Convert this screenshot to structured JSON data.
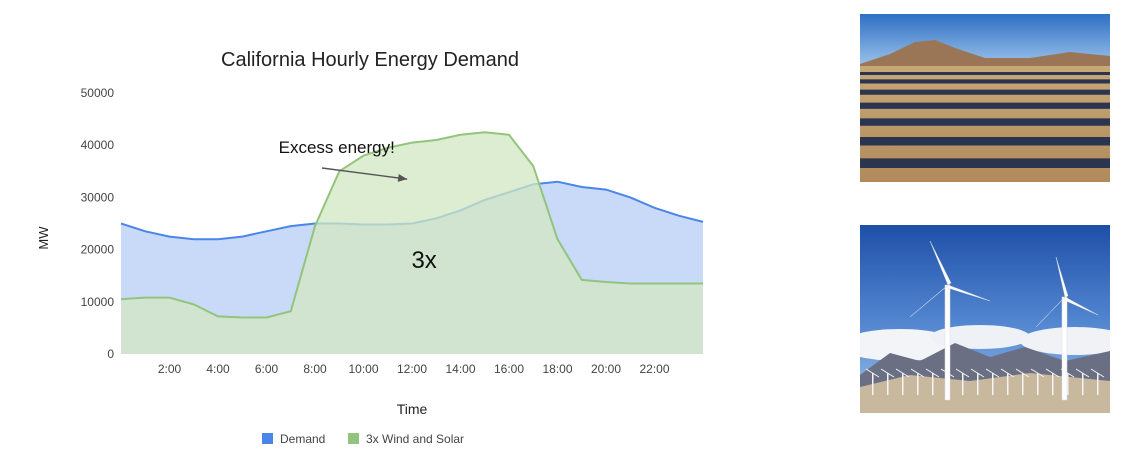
{
  "chart_data": {
    "type": "area",
    "title": "California Hourly Energy Demand",
    "xlabel": "Time",
    "ylabel": "MW",
    "x_ticks": [
      "2:00",
      "4:00",
      "6:00",
      "8:00",
      "10:00",
      "12:00",
      "14:00",
      "16:00",
      "18:00",
      "20:00",
      "22:00"
    ],
    "y_ticks": [
      "0",
      "10000",
      "20000",
      "30000",
      "40000",
      "50000"
    ],
    "ylim": [
      0,
      50000
    ],
    "xlim": [
      0,
      24
    ],
    "grid": false,
    "legend_position": "bottom",
    "x": [
      0,
      1,
      2,
      3,
      4,
      5,
      6,
      7,
      8,
      9,
      10,
      11,
      12,
      13,
      14,
      15,
      16,
      17,
      18,
      19,
      20,
      21,
      22,
      23,
      24
    ],
    "series": [
      {
        "name": "Demand",
        "color": "#4a86e8",
        "fill": "#c9daf8",
        "values": [
          25000,
          23500,
          22500,
          22000,
          22000,
          22500,
          23500,
          24500,
          25000,
          25000,
          24800,
          24800,
          25000,
          26000,
          27500,
          29500,
          31000,
          32500,
          33000,
          32000,
          31500,
          30000,
          28000,
          26500,
          25300
        ]
      },
      {
        "name": "3x Wind and Solar",
        "color": "#93c47d",
        "fill": "#d2e7c3",
        "values": [
          10500,
          10800,
          10800,
          9500,
          7200,
          7000,
          7000,
          8200,
          24500,
          35000,
          38000,
          39500,
          40500,
          41000,
          42000,
          42500,
          42000,
          36000,
          22000,
          14200,
          13800,
          13500,
          13500,
          13500,
          13500
        ]
      }
    ],
    "annotations": [
      {
        "text": "Excess energy!",
        "x": 6.5,
        "y": 38500,
        "arrow_to": {
          "x": 11.8,
          "y": 33500
        }
      },
      {
        "text": "3x",
        "x": 12.5,
        "y": 16500
      }
    ]
  },
  "images": [
    {
      "name": "solar-farm-photo",
      "icon": "solar-panels-desert"
    },
    {
      "name": "wind-farm-photo",
      "icon": "wind-turbines-mountains"
    }
  ]
}
